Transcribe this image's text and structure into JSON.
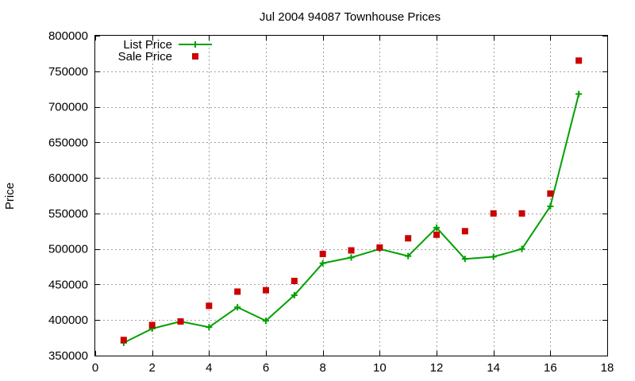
{
  "chart_data": {
    "type": "line",
    "title": "Jul 2004 94087 Townhouse Prices",
    "xlabel": "",
    "ylabel": "Price",
    "xlim": [
      0,
      18
    ],
    "ylim": [
      350000,
      800000
    ],
    "x_ticks": [
      0,
      2,
      4,
      6,
      8,
      10,
      12,
      14,
      16,
      18
    ],
    "y_ticks": [
      350000,
      400000,
      450000,
      500000,
      550000,
      600000,
      650000,
      700000,
      750000,
      800000
    ],
    "grid": true,
    "legend_position": "top-left",
    "x": [
      1,
      2,
      3,
      4,
      5,
      6,
      7,
      8,
      9,
      10,
      11,
      12,
      13,
      14,
      15,
      16,
      17
    ],
    "series": [
      {
        "name": "List Price",
        "kind": "line+cross",
        "color": "#00a000",
        "values": [
          368000,
          388000,
          398000,
          390000,
          418000,
          399000,
          435000,
          480000,
          488000,
          500000,
          490000,
          530000,
          486000,
          489000,
          500000,
          560000,
          718000
        ]
      },
      {
        "name": "Sale Price",
        "kind": "square",
        "color": "#cc0000",
        "values": [
          372000,
          393000,
          398000,
          420000,
          440000,
          442000,
          455000,
          493000,
          498000,
          502000,
          515000,
          520000,
          525000,
          550000,
          550000,
          578000,
          765000
        ]
      }
    ]
  }
}
